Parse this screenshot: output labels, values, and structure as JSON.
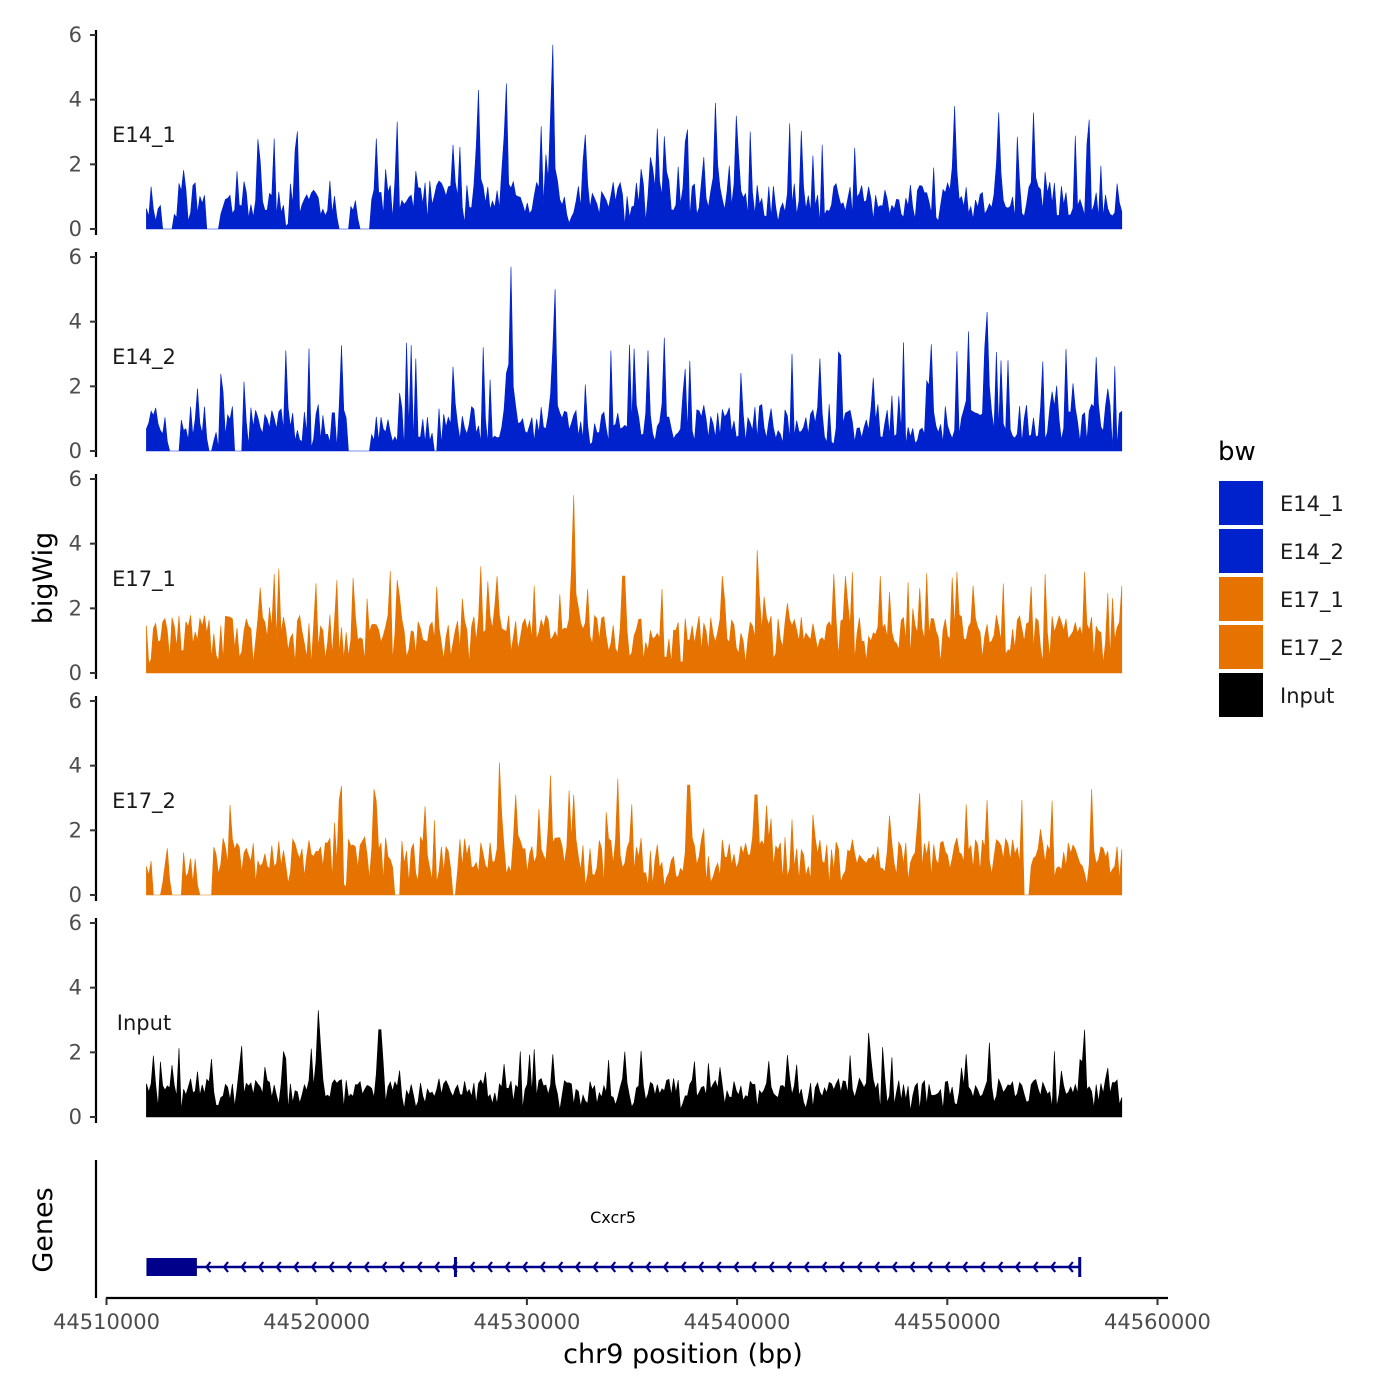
{
  "chart_data": {
    "type": "area",
    "title": "",
    "xlabel": "chr9 position (bp)",
    "ylabel": "bigWig",
    "gene_track_label": "Genes",
    "xlim": [
      44509500,
      44560500
    ],
    "x_data_range": [
      44511900,
      44558300
    ],
    "x_ticks": [
      44510000,
      44520000,
      44530000,
      44540000,
      44550000,
      44560000
    ],
    "x_tick_labels": [
      "44510000",
      "44520000",
      "44530000",
      "44540000",
      "44550000",
      "44560000"
    ],
    "ylim": [
      0,
      6
    ],
    "y_ticks": [
      0,
      2,
      4,
      6
    ],
    "y_tick_labels": [
      "0",
      "2",
      "4",
      "6"
    ],
    "legend": {
      "title": "bw",
      "position": "right",
      "entries": [
        {
          "label": "E14_1",
          "color": "#0022cc"
        },
        {
          "label": "E14_2",
          "color": "#0022cc"
        },
        {
          "label": "E17_1",
          "color": "#e67300"
        },
        {
          "label": "E17_2",
          "color": "#e67300"
        },
        {
          "label": "Input",
          "color": "#000000"
        }
      ]
    },
    "series": [
      {
        "name": "E14_1",
        "color": "#0022cc",
        "base": 0.3,
        "noise": 1.2,
        "seed": 11,
        "gaps": [
          [
            44512600,
            44513200
          ],
          [
            44514700,
            44515400
          ],
          [
            44521000,
            44521600
          ],
          [
            44522000,
            44522600
          ]
        ],
        "peaks": [
          {
            "x": 44520000,
            "y": 1.1
          },
          {
            "x": 44526500,
            "y": 2.6
          },
          {
            "x": 44527700,
            "y": 4.3
          },
          {
            "x": 44529000,
            "y": 4.5
          },
          {
            "x": 44531200,
            "y": 5.7
          },
          {
            "x": 44536200,
            "y": 3.1
          },
          {
            "x": 44539000,
            "y": 3.9
          },
          {
            "x": 44540000,
            "y": 3.5
          },
          {
            "x": 44550300,
            "y": 3.8
          },
          {
            "x": 44552400,
            "y": 3.6
          },
          {
            "x": 44554100,
            "y": 3.6
          }
        ]
      },
      {
        "name": "E14_2",
        "color": "#0022cc",
        "base": 0.25,
        "noise": 1.2,
        "seed": 23,
        "gaps": [
          [
            44513000,
            44513500
          ],
          [
            44514800,
            44515100
          ],
          [
            44516000,
            44516500
          ],
          [
            44521500,
            44522600
          ],
          [
            44525500,
            44525800
          ]
        ],
        "peaks": [
          {
            "x": 44518300,
            "y": 1.3
          },
          {
            "x": 44526500,
            "y": 2.6
          },
          {
            "x": 44529200,
            "y": 5.7
          },
          {
            "x": 44531300,
            "y": 5.0
          },
          {
            "x": 44536500,
            "y": 3.5
          },
          {
            "x": 44549200,
            "y": 3.3
          },
          {
            "x": 44551000,
            "y": 3.7
          },
          {
            "x": 44551900,
            "y": 4.3
          },
          {
            "x": 44557100,
            "y": 2.9
          }
        ]
      },
      {
        "name": "E17_1",
        "color": "#e67300",
        "base": 0.9,
        "noise": 0.9,
        "seed": 37,
        "gaps": [],
        "peaks": [
          {
            "x": 44527800,
            "y": 3.3
          },
          {
            "x": 44528600,
            "y": 3.0
          },
          {
            "x": 44532200,
            "y": 5.5
          },
          {
            "x": 44534600,
            "y": 3.0
          },
          {
            "x": 44539300,
            "y": 3.0
          },
          {
            "x": 44541000,
            "y": 3.8
          },
          {
            "x": 44545200,
            "y": 3.0
          },
          {
            "x": 44546800,
            "y": 3.0
          },
          {
            "x": 44550500,
            "y": 3.1
          },
          {
            "x": 44551200,
            "y": 2.7
          }
        ]
      },
      {
        "name": "E17_2",
        "color": "#e67300",
        "base": 0.8,
        "noise": 1.0,
        "seed": 53,
        "gaps": [
          [
            44512200,
            44512600
          ],
          [
            44513100,
            44513600
          ],
          [
            44514400,
            44515000
          ],
          [
            44523700,
            44524000
          ],
          [
            44526400,
            44526700
          ],
          [
            44553600,
            44553900
          ]
        ],
        "peaks": [
          {
            "x": 44522800,
            "y": 2.9
          },
          {
            "x": 44528700,
            "y": 4.1
          },
          {
            "x": 44529500,
            "y": 3.1
          },
          {
            "x": 44531100,
            "y": 3.7
          },
          {
            "x": 44532200,
            "y": 3.1
          },
          {
            "x": 44534300,
            "y": 3.6
          },
          {
            "x": 44537700,
            "y": 3.4
          },
          {
            "x": 44540900,
            "y": 3.1
          },
          {
            "x": 44550900,
            "y": 2.8
          }
        ]
      },
      {
        "name": "Input",
        "color": "#000000",
        "base": 0.6,
        "noise": 0.6,
        "seed": 71,
        "gaps": [],
        "peaks": [
          {
            "x": 44516400,
            "y": 2.2
          },
          {
            "x": 44520100,
            "y": 3.3
          },
          {
            "x": 44523000,
            "y": 2.7
          },
          {
            "x": 44546300,
            "y": 2.6
          },
          {
            "x": 44552000,
            "y": 2.3
          },
          {
            "x": 44556500,
            "y": 2.7
          }
        ]
      }
    ],
    "gene": {
      "name": "Cxcr5",
      "strand": "-",
      "start": 44511900,
      "end": 44556300,
      "exons": [
        [
          44511900,
          44514300
        ]
      ],
      "exon_marks": [
        44526600
      ],
      "color": "#00008b"
    }
  }
}
